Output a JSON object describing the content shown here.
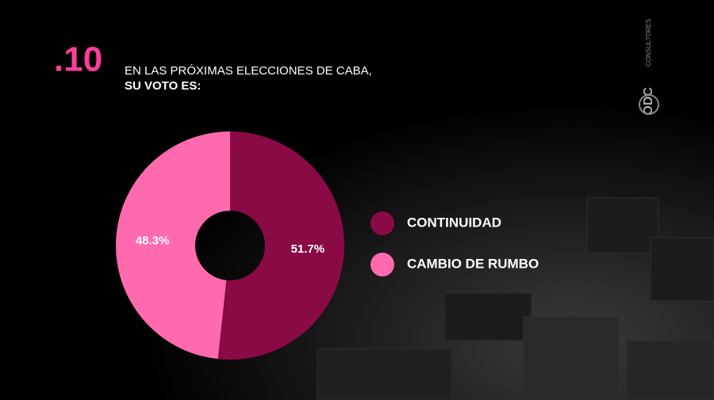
{
  "chart_data": {
    "type": "pie",
    "donut": true,
    "title": ".10",
    "subtitle": [
      "EN LAS PRÓXIMAS ELECCIONES DE CABA,",
      "SU VOTO ES:"
    ],
    "categories": [
      "CONTINUIDAD",
      "CAMBIO DE RUMBO"
    ],
    "values": [
      51.7,
      48.3
    ],
    "value_labels": [
      "51.7%",
      "48.3%"
    ],
    "colors": [
      "#8a0a45",
      "#ff6aae"
    ]
  },
  "logo": {
    "name": "ODC",
    "tagline": "CONSULTORES"
  }
}
